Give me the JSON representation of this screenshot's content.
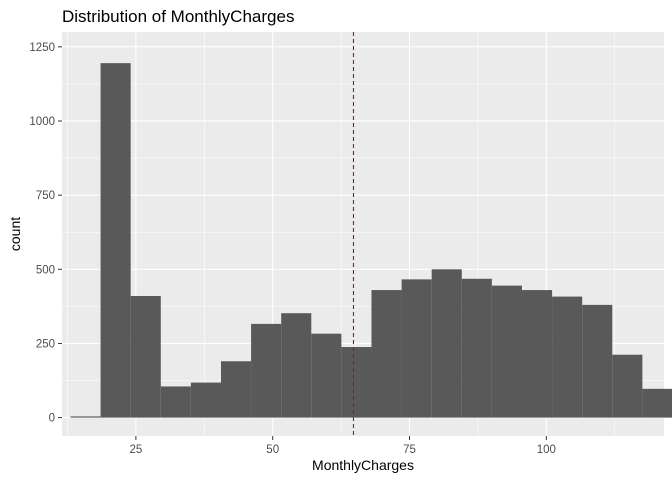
{
  "chart_data": {
    "type": "bar",
    "subtype": "histogram",
    "title": "Distribution of MonthlyCharges",
    "xlabel": "MonthlyCharges",
    "ylabel": "count",
    "xlim": [
      11.5,
      121.5
    ],
    "ylim": [
      -62,
      1300
    ],
    "x_ticks": [
      25,
      50,
      75,
      100
    ],
    "y_ticks": [
      0,
      250,
      500,
      750,
      1000,
      1250
    ],
    "bin_width": 5.5,
    "bin_start": 13.05,
    "values": [
      4,
      1195,
      410,
      105,
      118,
      190,
      316,
      352,
      283,
      238,
      430,
      466,
      500,
      468,
      445,
      430,
      408,
      380,
      212,
      97
    ],
    "reference_line": {
      "x": 64.76,
      "color": "#cc0000",
      "style": "dashed"
    },
    "grid": true,
    "background": "#ebebeb",
    "grid_color": "#ffffff",
    "bar_color": "#595959"
  }
}
